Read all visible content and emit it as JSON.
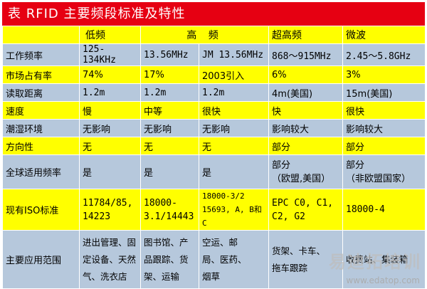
{
  "title": "表 RFID 主要频段标准及特性",
  "columns": [
    "",
    "低频",
    "高 频",
    "",
    "超高频",
    "微波"
  ],
  "rows": [
    {
      "label": "工作频率",
      "cells": [
        "125-134KHz",
        "13.56MHz",
        "JM 13.56MHz",
        "868～915MHz",
        "2.45～5.8GHz"
      ]
    },
    {
      "label": "市场占有率",
      "cells": [
        "74%",
        "17%",
        "2003引入",
        "6%",
        "3%"
      ]
    },
    {
      "label": "读取距离",
      "cells": [
        "1.2m",
        "1.2m",
        "1.2m",
        "4m(美国)",
        "15m(美国)"
      ]
    },
    {
      "label": "速度",
      "cells": [
        "慢",
        "中等",
        "很快",
        "快",
        "很快"
      ]
    },
    {
      "label": "潮湿环境",
      "cells": [
        "无影响",
        "无影响",
        "无影响",
        "影响较大",
        "影响较大"
      ]
    },
    {
      "label": "方向性",
      "cells": [
        "无",
        "无",
        "无",
        "部分",
        "部分"
      ]
    },
    {
      "label": "全球适用频率",
      "cells": [
        "是",
        "是",
        "是",
        "部分\n（欧盟,美国）",
        "部分\n（非欧盟国家）"
      ]
    },
    {
      "label": "现有ISO标准",
      "cells": [
        "11784/85,\n14223",
        "18000-\n3.1/14443",
        "18000-3/2\n15693, A, B和C",
        "EPC C0, C1,\nC2, G2",
        "18000-4"
      ]
    },
    {
      "label": "主要应用范围",
      "cells": [
        "进出管理、固\n定设备、天然\n气、洗衣店",
        "图书馆、产\n品跟踪、货\n架、运输",
        "空运、邮\n局、医药、\n烟草",
        "货架、卡车、\n拖车跟踪",
        "收费站、集装箱"
      ]
    }
  ],
  "watermark": "易迪拓培训",
  "watermark_url": "www.edatop.com"
}
